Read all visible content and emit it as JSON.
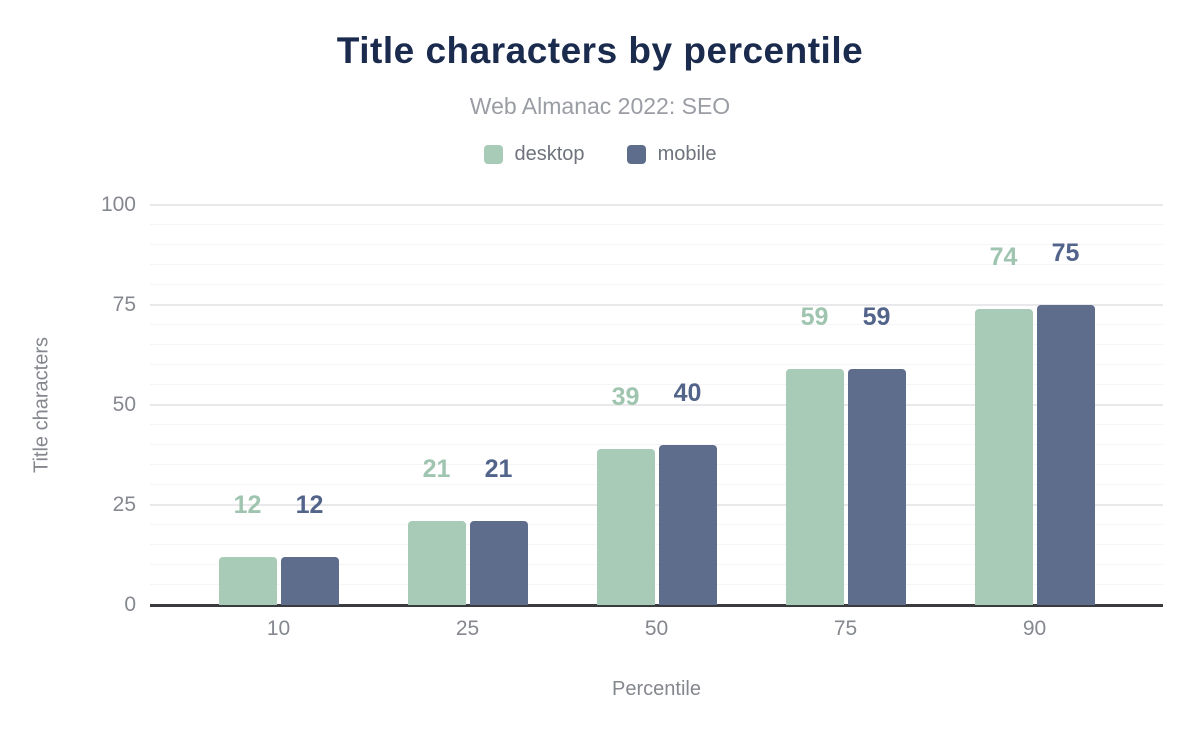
{
  "header": {
    "title": "Title characters by percentile",
    "subtitle": "Web Almanac 2022: SEO"
  },
  "chart_data": {
    "type": "bar",
    "title": "Title characters by percentile",
    "subtitle": "Web Almanac 2022: SEO",
    "categories": [
      "10",
      "25",
      "50",
      "75",
      "90"
    ],
    "series": [
      {
        "name": "desktop",
        "values": [
          12,
          21,
          39,
          59,
          74
        ],
        "color": "#a8cbb8",
        "label_color": "#9fc4af"
      },
      {
        "name": "mobile",
        "values": [
          12,
          21,
          40,
          59,
          75
        ],
        "color": "#5e6d8c",
        "label_color": "#53648a"
      }
    ],
    "xlabel": "Percentile",
    "ylabel": "Title characters",
    "ylim": [
      0,
      100
    ],
    "yticks": [
      0,
      25,
      50,
      75,
      100
    ],
    "minor_step": 5,
    "grid": true,
    "legend_position": "top",
    "annotations": "value labels above each bar"
  },
  "colors": {
    "title": "#1b2b4d",
    "subtitle": "#9a9da4",
    "axis_text": "#85888f",
    "baseline": "#3a3b3f",
    "grid_major": "#e9e9ec",
    "grid_minor": "#f5f5f7",
    "background": "#ffffff"
  }
}
